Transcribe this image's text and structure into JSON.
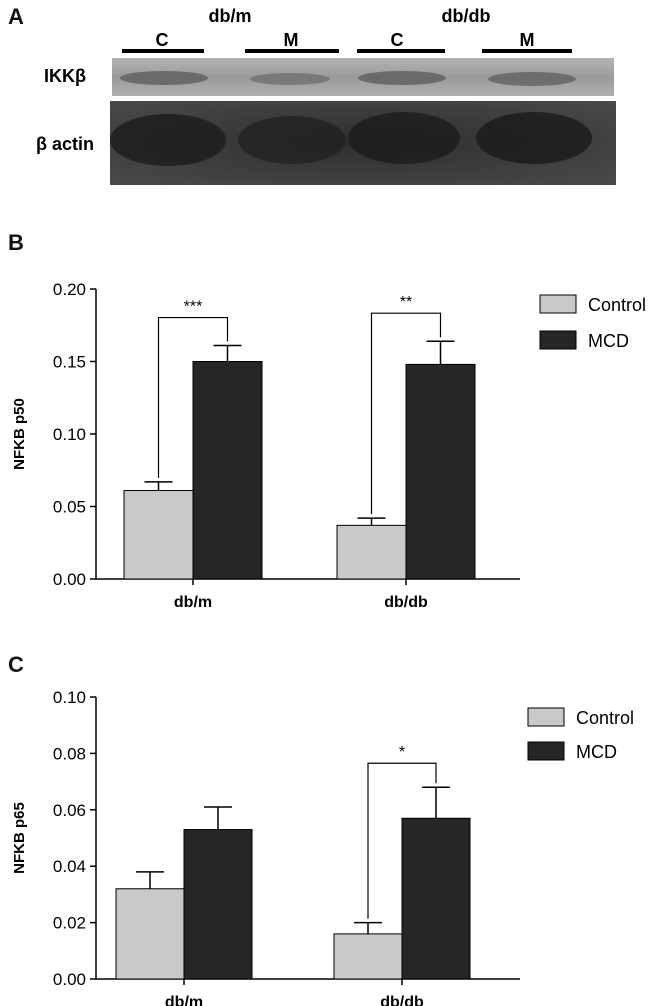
{
  "panels": {
    "a": "A",
    "b": "B",
    "c": "C"
  },
  "blot": {
    "groups": [
      "db/m",
      "db/db"
    ],
    "lanes": [
      "C",
      "M",
      "C",
      "M"
    ],
    "rows": [
      "IKKβ",
      "β actin"
    ]
  },
  "legend_labels": {
    "control": "Control",
    "mcd": "MCD"
  },
  "colors": {
    "control": "#c9c9c9",
    "mcd": "#262626",
    "axis": "#000000"
  },
  "chart_data": [
    {
      "type": "bar",
      "panel": "B",
      "categories": [
        "db/m",
        "db/db"
      ],
      "series": [
        {
          "name": "Control",
          "values": [
            0.061,
            0.037
          ],
          "errors": [
            0.006,
            0.005
          ]
        },
        {
          "name": "MCD",
          "values": [
            0.15,
            0.148
          ],
          "errors": [
            0.011,
            0.016
          ]
        }
      ],
      "title": "",
      "xlabel": "",
      "ylabel": "NFKB p50",
      "ylim": [
        0,
        0.2
      ],
      "yticks": [
        "0.00",
        "0.05",
        "0.10",
        "0.15",
        "0.20"
      ],
      "significance": [
        "***",
        "**"
      ],
      "legend": "top-right",
      "grid": false
    },
    {
      "type": "bar",
      "panel": "C",
      "categories": [
        "db/m",
        "db/db"
      ],
      "series": [
        {
          "name": "Control",
          "values": [
            0.032,
            0.016
          ],
          "errors": [
            0.006,
            0.004
          ]
        },
        {
          "name": "MCD",
          "values": [
            0.053,
            0.057
          ],
          "errors": [
            0.008,
            0.011
          ]
        }
      ],
      "title": "",
      "xlabel": "",
      "ylabel": "NFKB p65",
      "ylim": [
        0,
        0.1
      ],
      "yticks": [
        "0.00",
        "0.02",
        "0.04",
        "0.06",
        "0.08",
        "0.10"
      ],
      "significance": [
        "",
        "*"
      ],
      "legend": "top-right",
      "grid": false
    }
  ]
}
